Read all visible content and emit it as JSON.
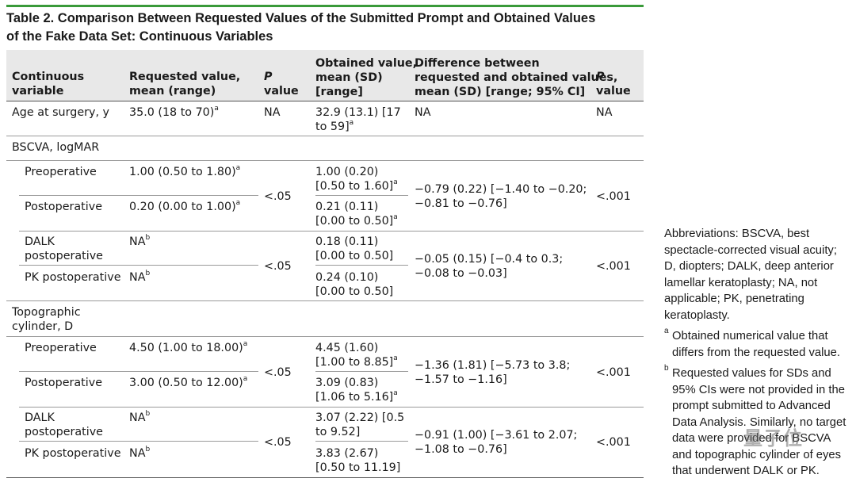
{
  "caption": {
    "line1": "Table 2. Comparison Between Requested Values of the Submitted Prompt and Obtained Values",
    "line2": "of the Fake Data Set: Continuous Variables"
  },
  "headers": {
    "variable": [
      "Continuous",
      "variable"
    ],
    "requested": [
      "Requested value,",
      "mean (range)"
    ],
    "p1": [
      "P",
      "value"
    ],
    "obtained": [
      "Obtained value,",
      "mean (SD)",
      "[range]"
    ],
    "difference": [
      "Difference between",
      "requested and obtained values,",
      "mean (SD) [range; 95% CI]"
    ],
    "p2": [
      "P",
      "value"
    ]
  },
  "age": {
    "label": "Age at surgery, y",
    "requested": "35.0 (18 to 70)",
    "requested_sup": "a",
    "p1": "NA",
    "obtained": [
      "32.9 (13.1) [17",
      "to 59]"
    ],
    "obtained_sup": "a",
    "difference": "NA",
    "p2": "NA"
  },
  "bscva": {
    "section": "BSCVA, logMAR",
    "pre": {
      "label": "Preoperative",
      "requested": "1.00 (0.50 to 1.80)",
      "requested_sup": "a",
      "obtained": [
        "1.00 (0.20)",
        "[0.50 to 1.60]"
      ],
      "obtained_sup": "a"
    },
    "post": {
      "label": "Postoperative",
      "requested": "0.20 (0.00 to 1.00)",
      "requested_sup": "a",
      "obtained": [
        "0.21 (0.11)",
        "[0.00 to 0.50]"
      ],
      "obtained_sup": "a"
    },
    "p_prepost": "<.05",
    "diff_prepost": [
      "−0.79 (0.22) [−1.40 to −0.20;",
      "−0.81 to −0.76]"
    ],
    "p2_prepost": "<.001",
    "dalk": {
      "label": [
        "DALK",
        "postoperative"
      ],
      "requested": "NA",
      "requested_sup": "b",
      "obtained": [
        "0.18 (0.11)",
        "[0.00 to 0.50]"
      ]
    },
    "pk": {
      "label": "PK postoperative",
      "requested": "NA",
      "requested_sup": "b",
      "obtained": [
        "0.24 (0.10)",
        "[0.00 to 0.50]"
      ]
    },
    "p_dalkpk": "<.05",
    "diff_dalkpk": [
      "−0.05 (0.15) [−0.4 to 0.3;",
      "−0.08 to −0.03]"
    ],
    "p2_dalkpk": "<.001"
  },
  "topo": {
    "section": [
      "Topographic",
      "cylinder, D"
    ],
    "pre": {
      "label": "Preoperative",
      "requested": "4.50 (1.00 to 18.00)",
      "requested_sup": "a",
      "obtained": [
        "4.45 (1.60)",
        "[1.00 to 8.85]"
      ],
      "obtained_sup": "a"
    },
    "post": {
      "label": "Postoperative",
      "requested": "3.00 (0.50 to 12.00)",
      "requested_sup": "a",
      "obtained": [
        "3.09 (0.83)",
        "[1.06 to 5.16]"
      ],
      "obtained_sup": "a"
    },
    "p_prepost": "<.05",
    "diff_prepost": [
      "−1.36 (1.81) [−5.73 to 3.8;",
      "−1.57 to −1.16]"
    ],
    "p2_prepost": "<.001",
    "dalk": {
      "label": [
        "DALK",
        "postoperative"
      ],
      "requested": "NA",
      "requested_sup": "b",
      "obtained": [
        "3.07 (2.22) [0.5",
        "to 9.52]"
      ]
    },
    "pk": {
      "label": "PK postoperative",
      "requested": "NA",
      "requested_sup": "b",
      "obtained": [
        "3.83 (2.67)",
        "[0.50 to 11.19]"
      ]
    },
    "p_dalkpk": "<.05",
    "diff_dalkpk": [
      "−0.91 (1.00) [−3.61 to 2.07;",
      "−1.08 to −0.76]"
    ],
    "p2_dalkpk": "<.001"
  },
  "notes": {
    "abbreviations": "Abbreviations: BSCVA, best spectacle-corrected visual acuity; D, diopters; DALK, deep anterior lamellar keratoplasty; NA, not applicable; PK, penetrating keratoplasty.",
    "fa_mark": "a",
    "fa_text": "Obtained numerical value that differs from the requested value.",
    "fb_mark": "b",
    "fb_text": "Requested values for SDs and 95% CIs were not provided in the prompt submitted to Advanced Data Analysis. Similarly, no target data were provided for BSCVA and topographic cylinder of eyes that underwent DALK or PK."
  },
  "watermark": "量子位"
}
